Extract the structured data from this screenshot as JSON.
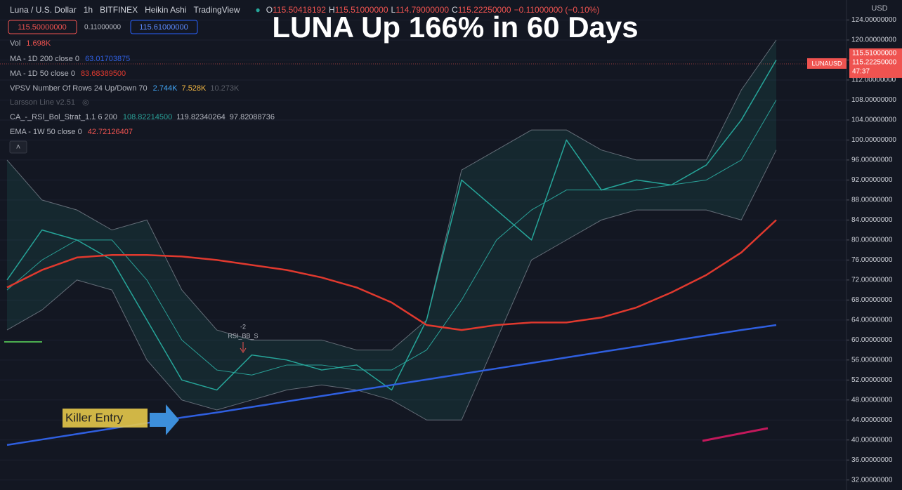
{
  "header": {
    "symbol": "Luna / U.S. Dollar",
    "interval": "1h",
    "exchange": "BITFINEX",
    "style": "Heikin Ashi",
    "source": "TradingView",
    "ohlc": [
      {
        "key": "O",
        "value": "115.50418192"
      },
      {
        "key": "H",
        "value": "115.51000000"
      },
      {
        "key": "L",
        "value": "114.79000000"
      },
      {
        "key": "C",
        "value": "115.22250000"
      }
    ],
    "change": "−0.11000000 (−0.10%)",
    "sell": "115.50000000",
    "spread": "0.11000000",
    "buy": "115.61000000"
  },
  "indicators": {
    "volume": {
      "name": "Vol",
      "value": "1.698K"
    },
    "vpsv": {
      "name": "VPSV Number Of Rows 24 Up/Down 70",
      "values": [
        "2.744K",
        "7.528K",
        "10.273K"
      ]
    },
    "larsson": {
      "name": "Larsson Line v2.51"
    },
    "ema": {
      "name": "EMA - 1W 50 close 0",
      "value": "42.72126407"
    }
  },
  "chart_data": {
    "type": "line",
    "title": "LUNA Up 166% in 60 Days",
    "categories": [
      null,
      null,
      null,
      null,
      null,
      null,
      null,
      null,
      null,
      null,
      null,
      null,
      null,
      null,
      null,
      null,
      null,
      null,
      null,
      null,
      null,
      null,
      null
    ],
    "series": [
      {
        "name": "Luna / U.S. Dollar",
        "color": "#26a69a",
        "values": [
          72,
          82,
          80,
          76,
          64,
          52,
          50,
          57,
          56,
          54,
          55,
          50,
          64,
          92,
          86,
          80,
          100,
          90,
          92,
          91,
          95,
          104,
          116
        ]
      },
      {
        "name": "MA - 1D 200 close 0",
        "color": "#2f5fe0",
        "legend_value": "63.01703875",
        "values": [
          39,
          40.1,
          41.2,
          42.3,
          43.4,
          44.5,
          45.5,
          46.6,
          47.7,
          48.8,
          49.9,
          51,
          52.1,
          53.2,
          54.3,
          55.4,
          56.5,
          57.6,
          58.7,
          59.8,
          60.9,
          62,
          63
        ]
      },
      {
        "name": "MA - 1D 50 close 0",
        "color": "#e0392e",
        "legend_value": "83.68389500",
        "values": [
          70.5,
          74,
          76.5,
          77,
          77,
          76.7,
          76,
          75,
          74,
          72.5,
          70.5,
          67.5,
          63,
          62,
          63,
          63.5,
          63.5,
          64.5,
          66.5,
          69.5,
          73,
          77.5,
          84
        ]
      }
    ],
    "bands": {
      "name": "CA_-_RSI_Bol_Strat_1.1 6 200",
      "color": "#2aa198",
      "legend_values": [
        "108.82214500",
        "119.82340264",
        "97.82088736"
      ],
      "basis": [
        70,
        76,
        80,
        80,
        72,
        60,
        54,
        53,
        55,
        55,
        54,
        54,
        58,
        68,
        80,
        86,
        90,
        90,
        90,
        91,
        92,
        96,
        108
      ],
      "upper": [
        96,
        88,
        86,
        82,
        84,
        70,
        62,
        60,
        60,
        60,
        58,
        58,
        64,
        94,
        98,
        102,
        102,
        98,
        96,
        96,
        96,
        110,
        120
      ],
      "lower": [
        62,
        66,
        72,
        70,
        56,
        48,
        46,
        48,
        50,
        51,
        50,
        48,
        44,
        44,
        60,
        76,
        80,
        84,
        86,
        86,
        86,
        84,
        98
      ]
    },
    "ylim": [
      30,
      128
    ],
    "yticks": [
      {
        "value": 124,
        "label": "124.00000000"
      },
      {
        "value": 120,
        "label": "120.00000000"
      },
      {
        "value": 116,
        "label": "116.00000000"
      },
      {
        "value": 112,
        "label": "112.00000000"
      },
      {
        "value": 108,
        "label": "108.00000000"
      },
      {
        "value": 104,
        "label": "104.00000000"
      },
      {
        "value": 100,
        "label": "100.00000000"
      },
      {
        "value": 96,
        "label": "96.00000000"
      },
      {
        "value": 92,
        "label": "92.00000000"
      },
      {
        "value": 88,
        "label": "88.00000000"
      },
      {
        "value": 84,
        "label": "84.00000000"
      },
      {
        "value": 80,
        "label": "80.00000000"
      },
      {
        "value": 76,
        "label": "76.00000000"
      },
      {
        "value": 72,
        "label": "72.00000000"
      },
      {
        "value": 68,
        "label": "68.00000000"
      },
      {
        "value": 64,
        "label": "64.00000000"
      },
      {
        "value": 60,
        "label": "60.00000000"
      },
      {
        "value": 56,
        "label": "56.00000000"
      },
      {
        "value": 52,
        "label": "52.00000000"
      },
      {
        "value": 48,
        "label": "48.00000000"
      },
      {
        "value": 44,
        "label": "44.00000000"
      },
      {
        "value": 40,
        "label": "40.00000000"
      },
      {
        "value": 36,
        "label": "36.00000000"
      },
      {
        "value": 32,
        "label": "32.00000000"
      }
    ],
    "axis_currency": "USD",
    "price_tags": [
      {
        "value": 115.51,
        "label": "115.51000000"
      },
      {
        "value": 115.2225,
        "label": "115.22250000"
      }
    ],
    "countdown": "47:37",
    "ticker": "LUNAUSD",
    "annotations": {
      "entry": "Killer Entry",
      "signal_count": "-2",
      "signal": "RSI_BB_S"
    }
  }
}
